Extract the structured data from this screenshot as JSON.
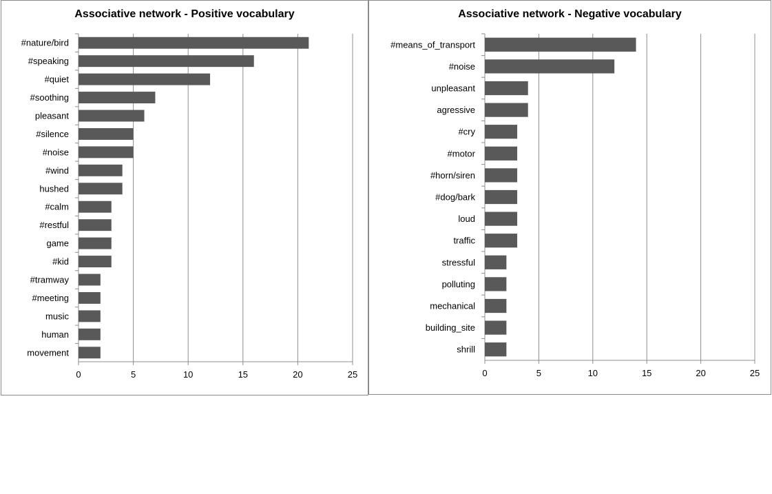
{
  "chart_data": [
    {
      "type": "bar",
      "orientation": "horizontal",
      "title": "Associative network - Positive vocabulary",
      "categories": [
        "#nature/bird",
        "#speaking",
        "#quiet",
        "#soothing",
        "pleasant",
        "#silence",
        "#noise",
        "#wind",
        "hushed",
        "#calm",
        "#restful",
        "game",
        "#kid",
        "#tramway",
        "#meeting",
        "music",
        "human",
        "movement"
      ],
      "values": [
        21,
        16,
        12,
        7,
        6,
        5,
        5,
        4,
        4,
        3,
        3,
        3,
        3,
        2,
        2,
        2,
        2,
        2
      ],
      "xlim": [
        0,
        25
      ],
      "xticks": [
        0,
        5,
        10,
        15,
        20,
        25
      ],
      "grid": "vertical",
      "legend": "none",
      "bar_color": "#595959"
    },
    {
      "type": "bar",
      "orientation": "horizontal",
      "title": "Associative network - Negative vocabulary",
      "categories": [
        "#means_of_transport",
        "#noise",
        "unpleasant",
        "agressive",
        "#cry",
        "#motor",
        "#horn/siren",
        "#dog/bark",
        "loud",
        "traffic",
        "stressful",
        "polluting",
        "mechanical",
        "building_site",
        "shrill"
      ],
      "values": [
        14,
        12,
        4,
        4,
        3,
        3,
        3,
        3,
        3,
        3,
        2,
        2,
        2,
        2,
        2
      ],
      "xlim": [
        0,
        25
      ],
      "xticks": [
        0,
        5,
        10,
        15,
        20,
        25
      ],
      "grid": "vertical",
      "legend": "none",
      "bar_color": "#595959"
    }
  ]
}
